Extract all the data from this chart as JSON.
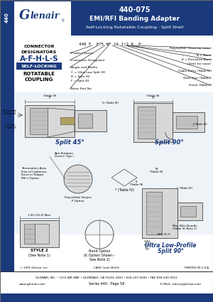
{
  "title_number": "440-075",
  "title_line1": "EMI/RFI Banding Adapter",
  "title_line2": "Self-Locking Rotatable Coupling - Split Shell",
  "series": "440",
  "company": "Glenair",
  "header_bg": "#1a3a7c",
  "header_text_color": "#ffffff",
  "left_bar_color": "#1a3a7c",
  "connector_designators": "A-F-H-L-S",
  "self_locking_bg": "#1a3a7c",
  "part_number_example": "440 F  075 NF 16 1/2 K  P",
  "footer_line1": "GLENAIR, INC. • 1211 AIR WAY • GLENDALE, CA 91201-2497 • 818-247-6000 • FAX 818-500-9912",
  "footer_line2": "www.glenair.com",
  "footer_line3": "Series 440 - Page 58",
  "footer_line4": "E-Mail: sales@glenair.com",
  "bg_color": "#ffffff",
  "light_blue": "#aac4dc",
  "diagram_line_color": "#444444",
  "gray_fill": "#d8d8d8",
  "dark_gray": "#888888",
  "hatch_color": "#bbbbbb"
}
